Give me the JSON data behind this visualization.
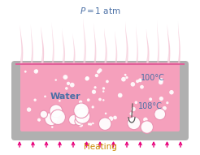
{
  "bg_color": "#ffffff",
  "pan_fill": "#b0b0b0",
  "pan_edge": "#999999",
  "water_fill": "#f5a0bc",
  "water_top_line": "#e0609a",
  "steam_color": "#f5c5d5",
  "bubble_color": "#ffffff",
  "arrow_color": "#e8007a",
  "text_color_blue": "#4a6fa5",
  "text_color_orange": "#cc8800",
  "title_text": "$P = 1$ atm",
  "water_label": "Water",
  "temp1_label": "100°C",
  "temp2_label": "108°C",
  "heating_label": "Heating",
  "figsize": [
    2.46,
    1.91
  ],
  "dpi": 100
}
